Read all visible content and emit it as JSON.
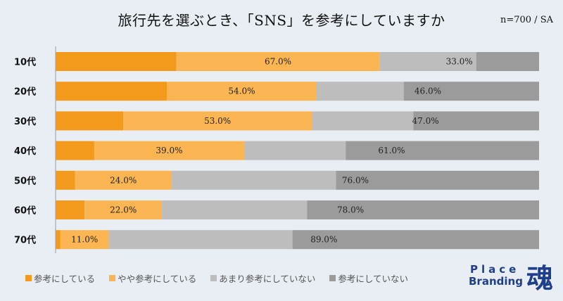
{
  "title": "旅行先を選ぶとき、「SNS」を参考にしていますか",
  "sample_note": "n=700 / SA",
  "legend": [
    {
      "label": "参考にしている",
      "color": "#f39a1c"
    },
    {
      "label": "やや参考にしている",
      "color": "#fbb552"
    },
    {
      "label": "あまり参考にしていない",
      "color": "#bdbdbd"
    },
    {
      "label": "参考にしていない",
      "color": "#9b9b9b"
    }
  ],
  "logo": {
    "line1": "Place",
    "line2": "Branding",
    "kanji": "魂"
  },
  "chart_data": {
    "type": "bar",
    "orientation": "horizontal",
    "stacked": true,
    "percent_scale": true,
    "categories": [
      "10代",
      "20代",
      "30代",
      "40代",
      "50代",
      "60代",
      "70代"
    ],
    "series": [
      {
        "name": "参考にしている",
        "values": [
          25.0,
          23.0,
          14.0,
          8.0,
          4.0,
          6.0,
          1.0
        ],
        "color": "#f39a1c"
      },
      {
        "name": "やや参考にしている",
        "values": [
          42.0,
          31.0,
          39.0,
          31.0,
          20.0,
          16.0,
          10.0
        ],
        "color": "#fbb552"
      },
      {
        "name": "あまり参考にしていない",
        "values": [
          20.0,
          18.0,
          21.0,
          21.0,
          34.0,
          30.0,
          38.0
        ],
        "color": "#bdbdbd"
      },
      {
        "name": "参考にしていない",
        "values": [
          13.0,
          28.0,
          26.0,
          40.0,
          42.0,
          48.0,
          51.0
        ],
        "color": "#9b9b9b"
      }
    ],
    "annotations": {
      "positive_total": [
        "67.0%",
        "54.0%",
        "53.0%",
        "39.0%",
        "24.0%",
        "22.0%",
        "11.0%"
      ],
      "negative_total": [
        "33.0%",
        "46.0%",
        "47.0%",
        "61.0%",
        "76.0%",
        "78.0%",
        "89.0%"
      ]
    },
    "xlim": [
      0,
      100
    ]
  }
}
